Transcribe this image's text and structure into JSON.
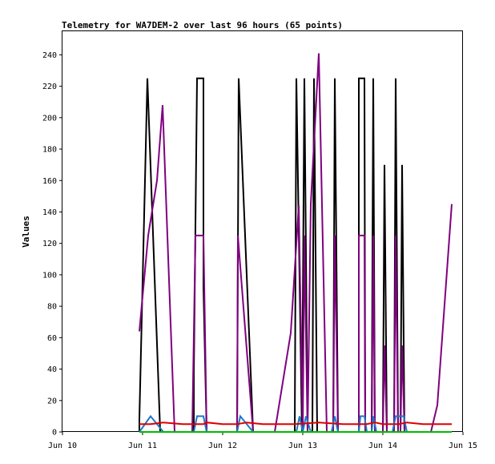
{
  "chart_data": {
    "type": "line",
    "title": "Telemetry for WA7DEM-2 over last 96 hours (65 points)",
    "xlabel": "",
    "ylabel": "Values",
    "x_ticks": [
      "Jun 10",
      "Jun 11",
      "Jun 12",
      "Jun 13",
      "Jun 14",
      "Jun 15"
    ],
    "xlim": [
      0,
      5
    ],
    "ylim": [
      0,
      255
    ],
    "y_ticks": [
      0,
      20,
      40,
      60,
      80,
      100,
      120,
      140,
      160,
      180,
      200,
      220,
      240
    ],
    "grid": false,
    "legend": "none",
    "series": [
      {
        "color": "#000000",
        "points": [
          [
            0.96,
            0
          ],
          [
            0.96,
            8
          ],
          [
            1.06,
            225
          ],
          [
            1.22,
            0
          ],
          [
            1.64,
            0
          ],
          [
            1.64,
            37
          ],
          [
            1.68,
            225
          ],
          [
            1.76,
            225
          ],
          [
            1.76,
            92
          ],
          [
            1.8,
            0
          ],
          [
            2.18,
            0
          ],
          [
            2.2,
            225
          ],
          [
            2.38,
            0
          ],
          [
            2.9,
            0
          ],
          [
            2.92,
            225
          ],
          [
            2.99,
            0
          ],
          [
            3.02,
            225
          ],
          [
            3.06,
            0
          ],
          [
            3.12,
            0
          ],
          [
            3.14,
            225
          ],
          [
            3.18,
            0
          ],
          [
            3.38,
            0
          ],
          [
            3.4,
            225
          ],
          [
            3.44,
            0
          ],
          [
            3.7,
            0
          ],
          [
            3.7,
            225
          ],
          [
            3.77,
            225
          ],
          [
            3.78,
            0
          ],
          [
            3.86,
            0
          ],
          [
            3.88,
            225
          ],
          [
            3.9,
            0
          ],
          [
            4.0,
            0
          ],
          [
            4.02,
            170
          ],
          [
            4.05,
            0
          ],
          [
            4.14,
            0
          ],
          [
            4.16,
            225
          ],
          [
            4.19,
            0
          ],
          [
            4.22,
            0
          ],
          [
            4.24,
            170
          ],
          [
            4.27,
            0
          ],
          [
            4.86,
            0
          ]
        ]
      },
      {
        "color": "#800080",
        "points": [
          [
            0.96,
            64
          ],
          [
            1.07,
            125
          ],
          [
            1.18,
            160
          ],
          [
            1.25,
            208
          ],
          [
            1.4,
            0
          ],
          [
            1.62,
            0
          ],
          [
            1.66,
            125
          ],
          [
            1.76,
            125
          ],
          [
            1.8,
            0
          ],
          [
            2.18,
            0
          ],
          [
            2.19,
            125
          ],
          [
            2.38,
            0
          ],
          [
            2.65,
            0
          ],
          [
            2.85,
            63
          ],
          [
            2.95,
            144
          ],
          [
            3.0,
            0
          ],
          [
            3.02,
            125
          ],
          [
            3.06,
            0
          ],
          [
            3.1,
            145
          ],
          [
            3.2,
            241
          ],
          [
            3.3,
            0
          ],
          [
            3.38,
            0
          ],
          [
            3.4,
            125
          ],
          [
            3.44,
            0
          ],
          [
            3.7,
            0
          ],
          [
            3.7,
            125
          ],
          [
            3.77,
            125
          ],
          [
            3.78,
            0
          ],
          [
            3.86,
            0
          ],
          [
            3.88,
            125
          ],
          [
            3.9,
            0
          ],
          [
            4.0,
            0
          ],
          [
            4.02,
            55
          ],
          [
            4.05,
            0
          ],
          [
            4.14,
            0
          ],
          [
            4.16,
            125
          ],
          [
            4.19,
            0
          ],
          [
            4.22,
            0
          ],
          [
            4.24,
            55
          ],
          [
            4.27,
            0
          ],
          [
            4.6,
            0
          ],
          [
            4.68,
            17
          ],
          [
            4.86,
            145
          ]
        ]
      },
      {
        "color": "#1f78c8",
        "points": [
          [
            0.96,
            0
          ],
          [
            1.1,
            10
          ],
          [
            1.26,
            0
          ],
          [
            1.64,
            0
          ],
          [
            1.68,
            10
          ],
          [
            1.76,
            10
          ],
          [
            1.8,
            0
          ],
          [
            2.18,
            0
          ],
          [
            2.22,
            10
          ],
          [
            2.38,
            0
          ],
          [
            2.92,
            0
          ],
          [
            2.96,
            10
          ],
          [
            3.0,
            0
          ],
          [
            3.04,
            10
          ],
          [
            3.1,
            0
          ],
          [
            3.36,
            0
          ],
          [
            3.4,
            10
          ],
          [
            3.44,
            0
          ],
          [
            3.7,
            0
          ],
          [
            3.72,
            10
          ],
          [
            3.77,
            10
          ],
          [
            3.8,
            0
          ],
          [
            3.86,
            0
          ],
          [
            3.88,
            10
          ],
          [
            3.92,
            0
          ],
          [
            4.12,
            0
          ],
          [
            4.16,
            10
          ],
          [
            4.26,
            10
          ],
          [
            4.3,
            0
          ]
        ]
      },
      {
        "color": "#dd0000",
        "points": [
          [
            0.96,
            5
          ],
          [
            1.1,
            5
          ],
          [
            1.26,
            6
          ],
          [
            1.5,
            5
          ],
          [
            1.76,
            5
          ],
          [
            1.8,
            6
          ],
          [
            2.0,
            5
          ],
          [
            2.18,
            5
          ],
          [
            2.3,
            6
          ],
          [
            2.5,
            5
          ],
          [
            2.9,
            5
          ],
          [
            3.2,
            6
          ],
          [
            3.5,
            5
          ],
          [
            3.8,
            5
          ],
          [
            3.9,
            6
          ],
          [
            4.0,
            5
          ],
          [
            4.2,
            5
          ],
          [
            4.3,
            6
          ],
          [
            4.5,
            5
          ],
          [
            4.86,
            5
          ]
        ]
      },
      {
        "color": "#00bb00",
        "points": [
          [
            0.96,
            0
          ],
          [
            4.86,
            0
          ]
        ]
      }
    ]
  }
}
